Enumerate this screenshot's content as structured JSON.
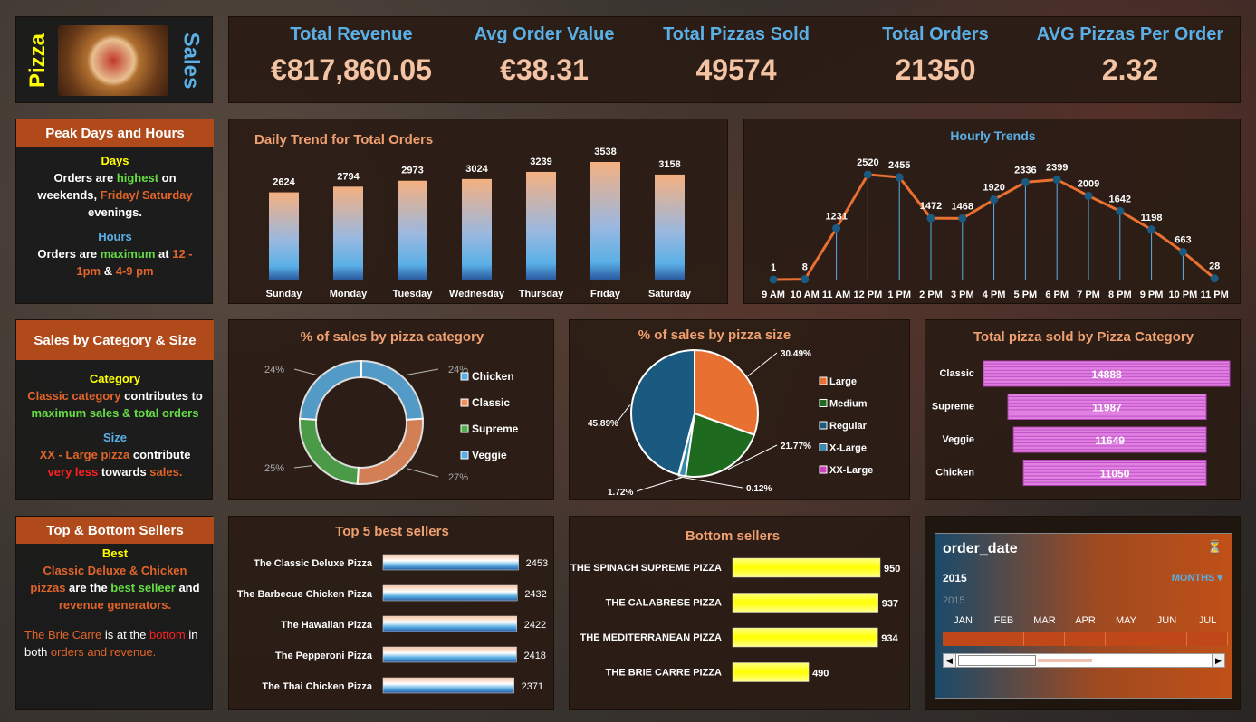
{
  "brand": {
    "word1": "Pizza",
    "word2": "Sales"
  },
  "kpis": [
    {
      "title": "Total Revenue",
      "value": "€817,860.05"
    },
    {
      "title": "Avg Order Value",
      "value": "€38.31"
    },
    {
      "title": "Total Pizzas Sold",
      "value": "49574"
    },
    {
      "title": "Total Orders",
      "value": "21350"
    },
    {
      "title": "AVG Pizzas Per Order",
      "value": "2.32"
    }
  ],
  "notes": {
    "peak": {
      "header": "Peak Days and Hours",
      "days": "Days",
      "l1a": "Orders are ",
      "l1b": "highest",
      "l1c": " on",
      "l2a": "weekends, ",
      "l2b": "Friday/ Saturday",
      "l3": "evenings.",
      "hours": "Hours",
      "l4a": "Orders are ",
      "l4b": "maximum",
      "l4c": " at ",
      "l4d": "12 -",
      "l5a": "1pm",
      "l5b": " & ",
      "l5c": "4-9 pm"
    },
    "cat": {
      "header": "Sales by Category & Size",
      "category": "Category",
      "l1a": "Classic category",
      "l1b": " contributes to",
      "l2a": "maximum sales & total orders",
      "size": "Size",
      "l3a": "XX - Large pizza",
      "l3b": " contribute",
      "l4a": "very less",
      "l4b": " towards ",
      "l4c": "sales."
    },
    "top": {
      "header": "Top & Bottom Sellers",
      "best": "Best",
      "l1": "Classic Deluxe & Chicken",
      "l2a": "pizzas",
      "l2b": " are the ",
      "l2c": "best selleer",
      "l2d": " and",
      "l3": "revenue generators.",
      "l4a": "The Brie Carre",
      "l4b": " is at the ",
      "l4c": "bottom",
      "l4d": " in",
      "l5a": "both ",
      "l5b": "orders and revenue."
    }
  },
  "slicer": {
    "title": "order_date",
    "year": "2015",
    "period": "MONTHS",
    "year_faded": "2015",
    "months": [
      "JAN",
      "FEB",
      "MAR",
      "APR",
      "MAY",
      "JUN",
      "JUL"
    ]
  },
  "chart_data": [
    {
      "type": "bar",
      "title": "Daily Trend for Total Orders",
      "categories": [
        "Sunday",
        "Monday",
        "Tuesday",
        "Wednesday",
        "Thursday",
        "Friday",
        "Saturday"
      ],
      "values": [
        2624,
        2794,
        2973,
        3024,
        3239,
        3538,
        3158
      ],
      "ylim": [
        0,
        4000
      ]
    },
    {
      "type": "line",
      "title": "Hourly Trends",
      "categories": [
        "9 AM",
        "10 AM",
        "11 AM",
        "12 PM",
        "1 PM",
        "2 PM",
        "3 PM",
        "4 PM",
        "5 PM",
        "6 PM",
        "7 PM",
        "8 PM",
        "9 PM",
        "10 PM",
        "11 PM"
      ],
      "values": [
        1,
        8,
        1231,
        2520,
        2455,
        1472,
        1468,
        1920,
        2336,
        2399,
        2009,
        1642,
        1198,
        663,
        28
      ],
      "ylim": [
        0,
        3000
      ]
    },
    {
      "type": "pie",
      "title": "% of sales by pizza category",
      "labels": [
        "Chicken",
        "Classic",
        "Supreme",
        "Veggie"
      ],
      "values": [
        24,
        27,
        25,
        24
      ],
      "value_labels": [
        "24%",
        "27%",
        "25%",
        "24%"
      ],
      "colors": [
        "#5ab0e6",
        "#f09060",
        "#50b050",
        "#5ab0e6"
      ]
    },
    {
      "type": "pie",
      "title": "% of sales by pizza size",
      "labels": [
        "Large",
        "Medium",
        "Regular",
        "X-Large",
        "XX-Large"
      ],
      "values": [
        30.49,
        21.77,
        45.89,
        1.72,
        0.12
      ],
      "value_labels": [
        "30.49%",
        "21.77%",
        "45.89%",
        "1.72%",
        "0.12%"
      ],
      "colors": [
        "#e87030",
        "#1e6a1e",
        "#1a5a80",
        "#3a8ab0",
        "#d040c0"
      ]
    },
    {
      "type": "bar",
      "title": "Total pizza sold by Pizza Category",
      "categories": [
        "Classic",
        "Supreme",
        "Veggie",
        "Chicken"
      ],
      "values": [
        14888,
        11987,
        11649,
        11050
      ]
    },
    {
      "type": "bar",
      "title": "Top 5 best sellers",
      "categories": [
        "The Classic Deluxe Pizza",
        "The Barbecue Chicken Pizza",
        "The Hawaiian Pizza",
        "The Pepperoni Pizza",
        "The Thai Chicken Pizza"
      ],
      "values": [
        2453,
        2432,
        2422,
        2418,
        2371
      ]
    },
    {
      "type": "bar",
      "title": "Bottom sellers",
      "categories": [
        "THE SPINACH SUPREME PIZZA",
        "THE CALABRESE PIZZA",
        "THE MEDITERRANEAN PIZZA",
        "THE BRIE CARRE PIZZA"
      ],
      "values": [
        950,
        937,
        934,
        490
      ]
    }
  ]
}
